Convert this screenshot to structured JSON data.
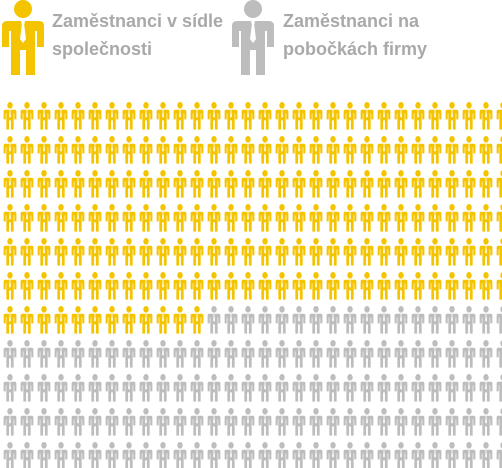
{
  "chart_data": {
    "type": "pictogram",
    "categories": [
      "Zaměstnanci v sídle společnosti",
      "Zaměstnanci na pobočkách firmy"
    ],
    "values": [
      192,
      140
    ],
    "colors": [
      "#f5c400",
      "#bdbdbd"
    ],
    "icon": "person-icon",
    "grid": {
      "rows": 11,
      "columns": 30
    }
  },
  "legend": {
    "hq": {
      "label": "Zaměstnanci v sídle společnosti",
      "color": "#f5c400",
      "icon": "person-icon"
    },
    "branch": {
      "label": "Zaměstnanci na pobočkách firmy",
      "color": "#bdbdbd",
      "icon": "person-icon"
    }
  }
}
